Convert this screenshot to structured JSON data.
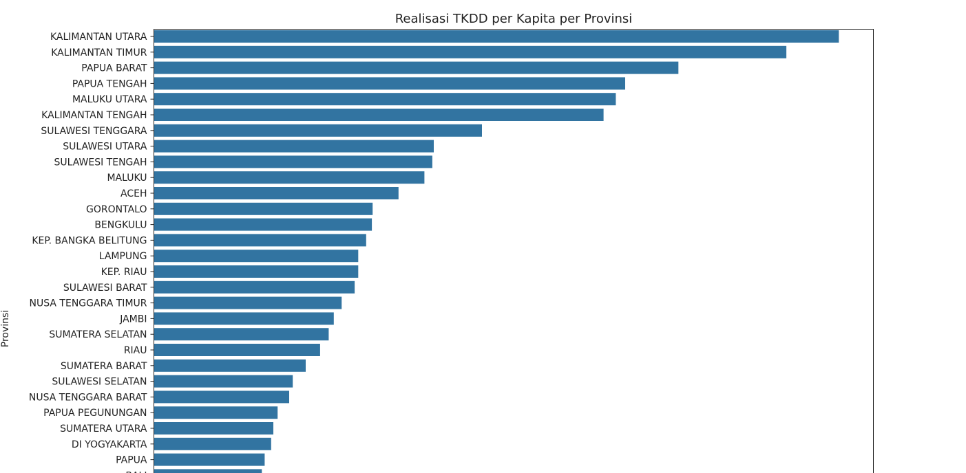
{
  "chart_data": {
    "type": "bar",
    "orientation": "horizontal",
    "title": "Realisasi TKDD per Kapita per Provinsi",
    "ylabel": "Provinsi",
    "bar_color": "#3274a1",
    "xlim": [
      0,
      1000
    ],
    "categories": [
      "KALIMANTAN UTARA",
      "KALIMANTAN TIMUR",
      "PAPUA BARAT",
      "PAPUA TENGAH",
      "MALUKU UTARA",
      "KALIMANTAN TENGAH",
      "SULAWESI TENGGARA",
      "SULAWESI UTARA",
      "SULAWESI TENGAH",
      "MALUKU",
      "ACEH",
      "GORONTALO",
      "BENGKULU",
      "KEP. BANGKA BELITUNG",
      "LAMPUNG",
      "KEP. RIAU",
      "SULAWESI BARAT",
      "NUSA TENGGARA TIMUR",
      "JAMBI",
      "SUMATERA SELATAN",
      "RIAU",
      "SUMATERA BARAT",
      "SULAWESI SELATAN",
      "NUSA TENGGARA BARAT",
      "PAPUA PEGUNUNGAN",
      "SUMATERA UTARA",
      "DI YOGYAKARTA",
      "PAPUA",
      "BALI"
    ],
    "values": [
      952,
      879,
      729,
      655,
      642,
      625,
      456,
      389,
      387,
      376,
      340,
      304,
      303,
      295,
      284,
      284,
      279,
      261,
      250,
      243,
      231,
      211,
      193,
      188,
      172,
      166,
      163,
      154,
      150
    ]
  }
}
